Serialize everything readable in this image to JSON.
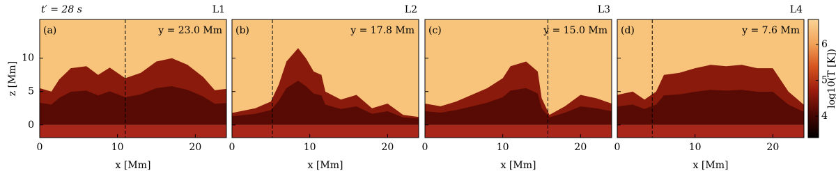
{
  "chart_data": [
    {
      "type": "heatmap",
      "time_label": "t′ = 28 s",
      "panel_label": "(a)",
      "title": "L1",
      "annotation": "y = 23.0 Mm",
      "xlabel": "x  [Mm]",
      "ylabel": "z  [Mm]",
      "xlim": [
        0,
        24
      ],
      "ylim": [
        -1.9,
        15.8
      ],
      "xticks": [
        0,
        10,
        20
      ],
      "yticks": [
        0,
        5,
        10
      ],
      "cut_x": 11.0
    },
    {
      "type": "heatmap",
      "panel_label": "(b)",
      "title": "L2",
      "annotation": "y = 17.8 Mm",
      "xlabel": "x  [Mm]",
      "xlim": [
        0,
        24
      ],
      "ylim": [
        -1.9,
        15.8
      ],
      "xticks": [
        0,
        10,
        20
      ],
      "yticks": [
        0,
        5,
        10
      ],
      "cut_x": 5.2
    },
    {
      "type": "heatmap",
      "panel_label": "(c)",
      "title": "L3",
      "annotation": "y = 15.0 Mm",
      "xlabel": "x  [Mm]",
      "xlim": [
        0,
        24
      ],
      "ylim": [
        -1.9,
        15.8
      ],
      "xticks": [
        0,
        10,
        20
      ],
      "yticks": [
        0,
        5,
        10
      ],
      "cut_x": 15.8
    },
    {
      "type": "heatmap",
      "panel_label": "(d)",
      "title": "L4",
      "annotation": "y = 7.6 Mm",
      "xlabel": "x  [Mm]",
      "xlim": [
        0,
        24
      ],
      "ylim": [
        -1.9,
        15.8
      ],
      "xticks": [
        0,
        10,
        20
      ],
      "yticks": [
        0,
        5,
        10
      ],
      "cut_x": 4.5,
      "colorbar": {
        "label": "log10(T [K])",
        "lim": [
          3.4,
          6.7
        ],
        "ticks": [
          4,
          5,
          6
        ]
      }
    }
  ]
}
